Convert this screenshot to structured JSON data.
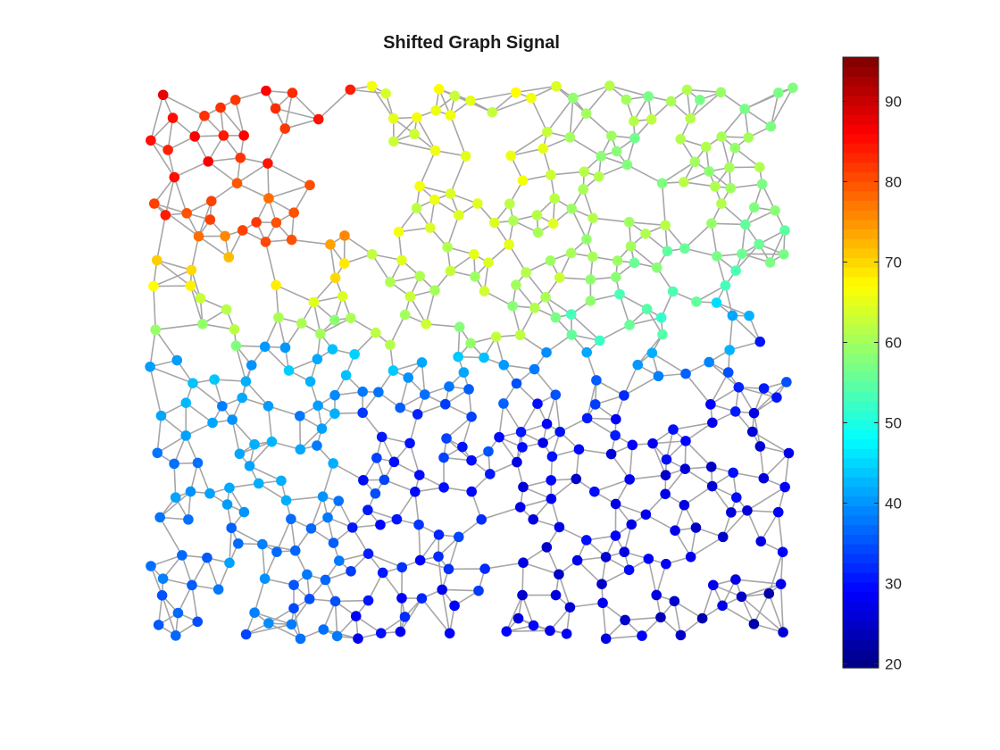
{
  "chart_data": {
    "type": "scatter",
    "title": "Shifted Graph Signal",
    "xlabel": "",
    "ylabel": "",
    "colormap": "jet",
    "edge_color": "#a6a6a6",
    "axes_visible": false,
    "grid": false,
    "colorbar": {
      "placement": "right",
      "clim": [
        19.5,
        95.5
      ],
      "ticks": [
        20,
        30,
        40,
        50,
        60,
        70,
        80,
        90
      ],
      "tick_labels": [
        "20",
        "30",
        "40",
        "50",
        "60",
        "70",
        "80",
        "90"
      ]
    },
    "region_levels": [
      {
        "region": "top-left",
        "approx_value": 84
      },
      {
        "region": "upper-middle",
        "approx_value": 65
      },
      {
        "region": "top-right",
        "approx_value": 58
      },
      {
        "region": "center",
        "approx_value": 50
      },
      {
        "region": "bottom-left",
        "approx_value": 40
      },
      {
        "region": "bottom-right",
        "approx_value": 28
      }
    ]
  }
}
